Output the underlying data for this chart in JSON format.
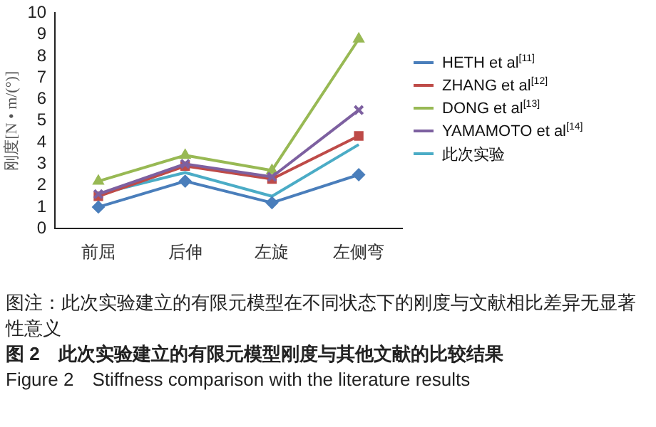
{
  "chart_data": {
    "type": "line",
    "ylabel": "刚度[N • m/(°)]",
    "categories": [
      "前屈",
      "后伸",
      "左旋",
      "左侧弯"
    ],
    "ylim": [
      0,
      10
    ],
    "yticks": [
      0,
      1,
      2,
      3,
      4,
      5,
      6,
      7,
      8,
      9,
      10
    ],
    "grid": false,
    "legend": "right",
    "line_style": "solid",
    "series": [
      {
        "name": "HETH et al$^{[11]}$",
        "color": "#4a7ebb",
        "marker": "diamond",
        "values": [
          1.0,
          2.2,
          1.2,
          2.5
        ]
      },
      {
        "name": "ZHANG et al$^{[12]}$",
        "color": "#be4b48",
        "marker": "square",
        "values": [
          1.5,
          2.9,
          2.3,
          4.3
        ]
      },
      {
        "name": "DONG et al$^{[13]}$",
        "color": "#98b954",
        "marker": "triangle",
        "values": [
          2.2,
          3.4,
          2.7,
          8.8
        ]
      },
      {
        "name": "YAMAMOTO et al$^{[14]}$",
        "color": "#7d60a0",
        "marker": "cross",
        "values": [
          1.6,
          3.0,
          2.4,
          5.5
        ]
      },
      {
        "name": "此次实验",
        "color": "#4bacc6",
        "marker": "none",
        "values": [
          1.6,
          2.6,
          1.5,
          3.9
        ]
      }
    ],
    "annotations": [
      "图注：此次实验建立的有限元模型在不同状态下的刚度与文献相比差异无显著性意义"
    ],
    "title": "图 2　此次实验建立的有限元模型刚度与其他文献的比较结果",
    "subtitle": "Figure 2　Stiffness comparison with the literature results"
  }
}
